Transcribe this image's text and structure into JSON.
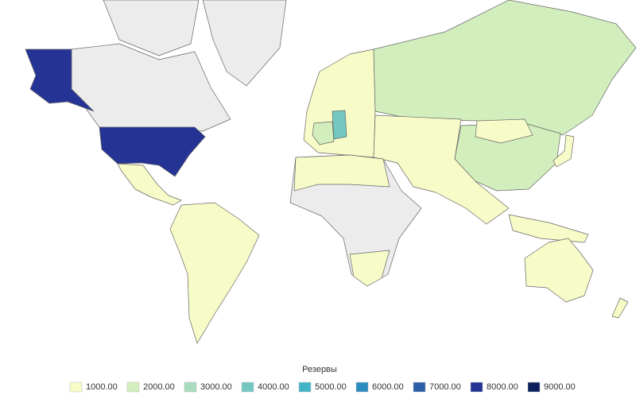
{
  "legend": {
    "title": "Резервы",
    "items": [
      {
        "value": 1000,
        "label": "1000.00",
        "color": "#f7fbc8"
      },
      {
        "value": 2000,
        "label": "2000.00",
        "color": "#d3eebd"
      },
      {
        "value": 3000,
        "label": "3000.00",
        "color": "#a7dcbf"
      },
      {
        "value": 4000,
        "label": "4000.00",
        "color": "#72c8c1"
      },
      {
        "value": 5000,
        "label": "5000.00",
        "color": "#41b4c8"
      },
      {
        "value": 6000,
        "label": "6000.00",
        "color": "#2c8cc0"
      },
      {
        "value": 7000,
        "label": "7000.00",
        "color": "#2c5ea9"
      },
      {
        "value": 8000,
        "label": "8000.00",
        "color": "#253494"
      },
      {
        "value": 9000,
        "label": "9000.00",
        "color": "#0b1f5c"
      }
    ]
  }
}
